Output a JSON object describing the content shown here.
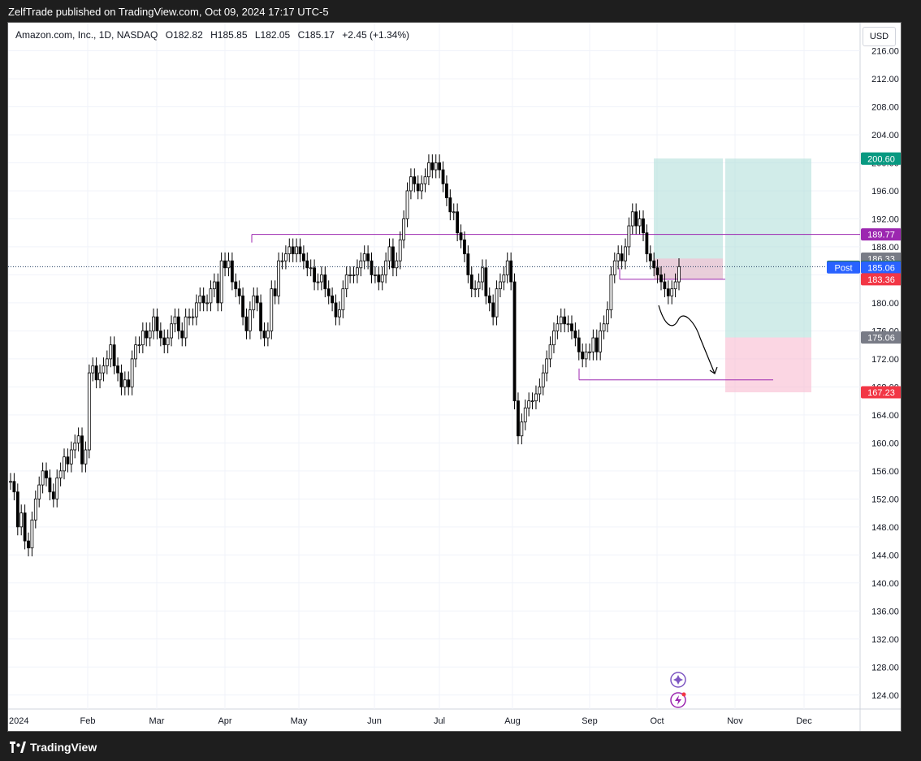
{
  "header": {
    "published": "ZelfTrade published on TradingView.com, Oct 09, 2024 17:17 UTC-5"
  },
  "legend": {
    "symbol": "Amazon.com, Inc., 1D, NASDAQ",
    "open": "O182.82",
    "high": "H185.85",
    "low": "L182.05",
    "close": "C185.17",
    "change": "+2.45 (+1.34%)"
  },
  "currency": "USD",
  "footer": {
    "brand": "TradingView"
  },
  "colors": {
    "up": "#ffffff",
    "down": "#000000",
    "wick": "#000000",
    "target_fill": "#b2dfdb",
    "stop_fill": "#f8bbd0",
    "resistance_line": "#9c27b0",
    "last_price_line": "#1e3a5f"
  },
  "chart_data": {
    "type": "candlestick",
    "symbol": "AMZN",
    "interval": "1D",
    "ylim": [
      122,
      220
    ],
    "y_ticks": [
      "216.00",
      "212.00",
      "208.00",
      "204.00",
      "200.00",
      "196.00",
      "192.00",
      "188.00",
      "184.00",
      "180.00",
      "176.00",
      "172.00",
      "168.00",
      "164.00",
      "160.00",
      "156.00",
      "152.00",
      "148.00",
      "144.00",
      "140.00",
      "136.00",
      "132.00",
      "128.00",
      "124.00"
    ],
    "x_ticks": [
      "2024",
      "Feb",
      "Mar",
      "Apr",
      "May",
      "Jun",
      "Jul",
      "Aug",
      "Sep",
      "Oct",
      "Nov",
      "Dec"
    ],
    "grid": true,
    "price_labels": [
      {
        "label": "",
        "value": "200.61",
        "bg": "#089981"
      },
      {
        "label": "",
        "value": "200.60",
        "bg": "#089981"
      },
      {
        "label": "",
        "value": "189.77",
        "bg": "#9c27b0"
      },
      {
        "label": "",
        "value": "186.33",
        "bg": "#787b86"
      },
      {
        "label": "AMZN",
        "value": "185.17",
        "bg": "#2e7d32"
      },
      {
        "label": "Post",
        "value": "185.06",
        "bg": "#2962ff"
      },
      {
        "label": "",
        "value": "183.36",
        "bg": "#f23645"
      },
      {
        "label": "",
        "value": "175.06",
        "bg": "#787b86"
      },
      {
        "label": "",
        "value": "167.23",
        "bg": "#f23645"
      }
    ],
    "resistance_line": 189.77,
    "last_price": 185.17,
    "position_tool": {
      "entry": 183.36,
      "target": 200.61,
      "stop": 186.33
    },
    "position_tool_2": {
      "entry": 175.06,
      "target": 200.6,
      "stop": 167.23
    },
    "support_line": 169.0,
    "points": [
      {
        "x": 0,
        "y": 154.5
      },
      {
        "x": 1,
        "y": 153
      },
      {
        "x": 2,
        "y": 148
      },
      {
        "x": 3,
        "y": 150
      },
      {
        "x": 4,
        "y": 146
      },
      {
        "x": 5,
        "y": 145
      },
      {
        "x": 6,
        "y": 149
      },
      {
        "x": 7,
        "y": 152
      },
      {
        "x": 8,
        "y": 154
      },
      {
        "x": 9,
        "y": 156
      },
      {
        "x": 10,
        "y": 155
      },
      {
        "x": 11,
        "y": 153
      },
      {
        "x": 12,
        "y": 152
      },
      {
        "x": 13,
        "y": 155
      },
      {
        "x": 14,
        "y": 156
      },
      {
        "x": 15,
        "y": 158
      },
      {
        "x": 16,
        "y": 157
      },
      {
        "x": 17,
        "y": 159
      },
      {
        "x": 18,
        "y": 160
      },
      {
        "x": 19,
        "y": 161
      },
      {
        "x": 20,
        "y": 157
      },
      {
        "x": 21,
        "y": 159
      },
      {
        "x": 22,
        "y": 170
      },
      {
        "x": 23,
        "y": 171
      },
      {
        "x": 24,
        "y": 169
      },
      {
        "x": 25,
        "y": 170
      },
      {
        "x": 26,
        "y": 171
      },
      {
        "x": 27,
        "y": 172
      },
      {
        "x": 28,
        "y": 174
      },
      {
        "x": 29,
        "y": 171
      },
      {
        "x": 30,
        "y": 170
      },
      {
        "x": 31,
        "y": 168
      },
      {
        "x": 32,
        "y": 169
      },
      {
        "x": 33,
        "y": 168
      },
      {
        "x": 34,
        "y": 172
      },
      {
        "x": 35,
        "y": 174
      },
      {
        "x": 36,
        "y": 174
      },
      {
        "x": 37,
        "y": 176
      },
      {
        "x": 38,
        "y": 175
      },
      {
        "x": 39,
        "y": 176
      },
      {
        "x": 40,
        "y": 178
      },
      {
        "x": 41,
        "y": 176
      },
      {
        "x": 42,
        "y": 175
      },
      {
        "x": 43,
        "y": 174
      },
      {
        "x": 44,
        "y": 175
      },
      {
        "x": 45,
        "y": 177
      },
      {
        "x": 46,
        "y": 178
      },
      {
        "x": 47,
        "y": 176
      },
      {
        "x": 48,
        "y": 175
      },
      {
        "x": 49,
        "y": 178
      },
      {
        "x": 50,
        "y": 178
      },
      {
        "x": 51,
        "y": 178
      },
      {
        "x": 52,
        "y": 180
      },
      {
        "x": 53,
        "y": 181
      },
      {
        "x": 54,
        "y": 180
      },
      {
        "x": 55,
        "y": 180
      },
      {
        "x": 56,
        "y": 182
      },
      {
        "x": 57,
        "y": 183
      },
      {
        "x": 58,
        "y": 180
      },
      {
        "x": 59,
        "y": 186
      },
      {
        "x": 60,
        "y": 185
      },
      {
        "x": 61,
        "y": 186
      },
      {
        "x": 62,
        "y": 183
      },
      {
        "x": 63,
        "y": 182
      },
      {
        "x": 64,
        "y": 181
      },
      {
        "x": 65,
        "y": 178
      },
      {
        "x": 66,
        "y": 176
      },
      {
        "x": 67,
        "y": 179
      },
      {
        "x": 68,
        "y": 181
      },
      {
        "x": 69,
        "y": 180
      },
      {
        "x": 70,
        "y": 176
      },
      {
        "x": 71,
        "y": 175
      },
      {
        "x": 72,
        "y": 176
      },
      {
        "x": 73,
        "y": 182
      },
      {
        "x": 74,
        "y": 181
      },
      {
        "x": 75,
        "y": 186
      },
      {
        "x": 76,
        "y": 186
      },
      {
        "x": 77,
        "y": 187
      },
      {
        "x": 78,
        "y": 188
      },
      {
        "x": 79,
        "y": 187
      },
      {
        "x": 80,
        "y": 188
      },
      {
        "x": 81,
        "y": 187
      },
      {
        "x": 82,
        "y": 186
      },
      {
        "x": 83,
        "y": 185
      },
      {
        "x": 84,
        "y": 185
      },
      {
        "x": 85,
        "y": 183
      },
      {
        "x": 86,
        "y": 183
      },
      {
        "x": 87,
        "y": 184
      },
      {
        "x": 88,
        "y": 182
      },
      {
        "x": 89,
        "y": 181
      },
      {
        "x": 90,
        "y": 180
      },
      {
        "x": 91,
        "y": 178
      },
      {
        "x": 92,
        "y": 179
      },
      {
        "x": 93,
        "y": 182
      },
      {
        "x": 94,
        "y": 184
      },
      {
        "x": 95,
        "y": 184
      },
      {
        "x": 96,
        "y": 184
      },
      {
        "x": 97,
        "y": 185
      },
      {
        "x": 98,
        "y": 186
      },
      {
        "x": 99,
        "y": 187
      },
      {
        "x": 100,
        "y": 186
      },
      {
        "x": 101,
        "y": 184
      },
      {
        "x": 102,
        "y": 184
      },
      {
        "x": 103,
        "y": 183
      },
      {
        "x": 104,
        "y": 184
      },
      {
        "x": 105,
        "y": 186
      },
      {
        "x": 106,
        "y": 188
      },
      {
        "x": 107,
        "y": 185
      },
      {
        "x": 108,
        "y": 186
      },
      {
        "x": 109,
        "y": 189
      },
      {
        "x": 110,
        "y": 192
      },
      {
        "x": 111,
        "y": 196
      },
      {
        "x": 112,
        "y": 198
      },
      {
        "x": 113,
        "y": 197
      },
      {
        "x": 114,
        "y": 196
      },
      {
        "x": 115,
        "y": 197
      },
      {
        "x": 116,
        "y": 198
      },
      {
        "x": 117,
        "y": 200
      },
      {
        "x": 118,
        "y": 199
      },
      {
        "x": 119,
        "y": 200
      },
      {
        "x": 120,
        "y": 199
      },
      {
        "x": 121,
        "y": 197
      },
      {
        "x": 122,
        "y": 195
      },
      {
        "x": 123,
        "y": 193
      },
      {
        "x": 124,
        "y": 193
      },
      {
        "x": 125,
        "y": 190
      },
      {
        "x": 126,
        "y": 189
      },
      {
        "x": 127,
        "y": 187
      },
      {
        "x": 128,
        "y": 184
      },
      {
        "x": 129,
        "y": 182
      },
      {
        "x": 130,
        "y": 182
      },
      {
        "x": 131,
        "y": 183
      },
      {
        "x": 132,
        "y": 185
      },
      {
        "x": 133,
        "y": 181
      },
      {
        "x": 134,
        "y": 180
      },
      {
        "x": 135,
        "y": 178
      },
      {
        "x": 136,
        "y": 182
      },
      {
        "x": 137,
        "y": 183
      },
      {
        "x": 138,
        "y": 184
      },
      {
        "x": 139,
        "y": 186
      },
      {
        "x": 140,
        "y": 183
      },
      {
        "x": 141,
        "y": 166
      },
      {
        "x": 142,
        "y": 161
      },
      {
        "x": 143,
        "y": 163
      },
      {
        "x": 144,
        "y": 165
      },
      {
        "x": 145,
        "y": 166
      },
      {
        "x": 146,
        "y": 166
      },
      {
        "x": 147,
        "y": 167
      },
      {
        "x": 148,
        "y": 168
      },
      {
        "x": 149,
        "y": 170
      },
      {
        "x": 150,
        "y": 172
      },
      {
        "x": 151,
        "y": 174
      },
      {
        "x": 152,
        "y": 176
      },
      {
        "x": 153,
        "y": 177
      },
      {
        "x": 154,
        "y": 178
      },
      {
        "x": 155,
        "y": 177
      },
      {
        "x": 156,
        "y": 177
      },
      {
        "x": 157,
        "y": 176
      },
      {
        "x": 158,
        "y": 175
      },
      {
        "x": 159,
        "y": 173
      },
      {
        "x": 160,
        "y": 172
      },
      {
        "x": 161,
        "y": 173
      },
      {
        "x": 162,
        "y": 173
      },
      {
        "x": 163,
        "y": 175
      },
      {
        "x": 164,
        "y": 173
      },
      {
        "x": 165,
        "y": 176
      },
      {
        "x": 166,
        "y": 177
      },
      {
        "x": 167,
        "y": 179
      },
      {
        "x": 168,
        "y": 184
      },
      {
        "x": 169,
        "y": 186
      },
      {
        "x": 170,
        "y": 187
      },
      {
        "x": 171,
        "y": 186
      },
      {
        "x": 172,
        "y": 188
      },
      {
        "x": 173,
        "y": 191
      },
      {
        "x": 174,
        "y": 193
      },
      {
        "x": 175,
        "y": 191
      },
      {
        "x": 176,
        "y": 192
      },
      {
        "x": 177,
        "y": 190
      },
      {
        "x": 178,
        "y": 187
      },
      {
        "x": 179,
        "y": 186
      },
      {
        "x": 180,
        "y": 185
      },
      {
        "x": 181,
        "y": 184
      },
      {
        "x": 182,
        "y": 183
      },
      {
        "x": 183,
        "y": 182
      },
      {
        "x": 184,
        "y": 181
      },
      {
        "x": 185,
        "y": 182
      },
      {
        "x": 186,
        "y": 183
      },
      {
        "x": 187,
        "y": 185.17
      }
    ]
  }
}
